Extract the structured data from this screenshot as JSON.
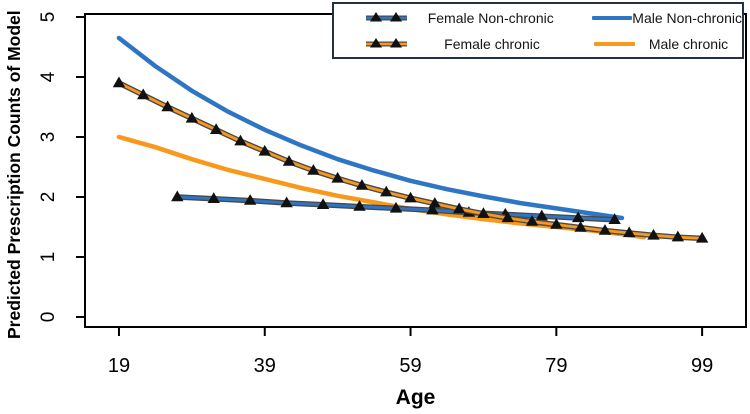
{
  "figure": {
    "background": "#ffffff"
  },
  "colors": {
    "blue": "#2e75c4",
    "orange": "#f8981d",
    "marker": "#111111",
    "underlay": "#4a4a4a",
    "axis": "#000000",
    "legend_border": "#22304a"
  },
  "chart_data": {
    "type": "line",
    "title": "",
    "xlabel": "Age",
    "ylabel": "Predicted Prescription Counts of Model",
    "x_ticks": [
      19,
      39,
      59,
      79,
      99
    ],
    "y_ticks": [
      0,
      1,
      2,
      3,
      4,
      5
    ],
    "xlim": [
      14.34,
      105.02
    ],
    "ylim": [
      -0.167,
      5.05
    ],
    "grid": false,
    "legend_position": "top-right",
    "series": [
      {
        "name": "Female Non-chronic",
        "key": "female_nonchronic",
        "color": "blue",
        "marker": "triangle",
        "x": [
          27,
          32,
          37,
          42,
          47,
          52,
          57,
          62,
          67,
          72,
          77,
          82,
          87
        ],
        "y": [
          2.0,
          1.97,
          1.94,
          1.9,
          1.87,
          1.84,
          1.81,
          1.78,
          1.74,
          1.71,
          1.68,
          1.65,
          1.62
        ]
      },
      {
        "name": "Female chronic",
        "key": "female_chronic",
        "color": "orange",
        "marker": "triangle",
        "x": [
          19,
          22.33,
          25.67,
          29,
          32.33,
          35.67,
          39,
          42.33,
          45.67,
          49,
          52.33,
          55.67,
          59,
          62.33,
          65.67,
          69,
          72.33,
          75.67,
          79,
          82.33,
          85.67,
          89,
          92.33,
          95.67,
          99
        ],
        "y": [
          3.9,
          3.7,
          3.5,
          3.31,
          3.12,
          2.93,
          2.76,
          2.59,
          2.44,
          2.31,
          2.19,
          2.08,
          1.98,
          1.89,
          1.8,
          1.72,
          1.65,
          1.59,
          1.54,
          1.49,
          1.44,
          1.4,
          1.36,
          1.33,
          1.31
        ]
      },
      {
        "name": "Male Non-chronic",
        "key": "male_nonchronic",
        "color": "blue",
        "marker": null,
        "x": [
          19,
          24,
          29,
          34,
          39,
          44,
          49,
          54,
          59,
          64,
          69,
          74,
          79,
          84,
          88
        ],
        "y": [
          4.65,
          4.18,
          3.77,
          3.42,
          3.12,
          2.86,
          2.63,
          2.44,
          2.27,
          2.13,
          2.01,
          1.9,
          1.81,
          1.72,
          1.65
        ]
      },
      {
        "name": "Male chronic",
        "key": "male_chronic",
        "color": "orange",
        "marker": null,
        "x": [
          19,
          24,
          29,
          34,
          39,
          44,
          49,
          54,
          59,
          64,
          69,
          74,
          79,
          84,
          88,
          91
        ],
        "y": [
          3.0,
          2.83,
          2.63,
          2.45,
          2.3,
          2.15,
          2.02,
          1.91,
          1.8,
          1.71,
          1.63,
          1.56,
          1.5,
          1.44,
          1.38,
          1.33
        ]
      }
    ],
    "legend": {
      "entries": [
        {
          "label": "Female Non-chronic",
          "color": "blue",
          "marker": true
        },
        {
          "label": "Female chronic",
          "color": "orange",
          "marker": true
        },
        {
          "label": "Male Non-chronic",
          "color": "blue",
          "marker": false
        },
        {
          "label": "Male chronic",
          "color": "orange",
          "marker": false
        }
      ]
    }
  }
}
